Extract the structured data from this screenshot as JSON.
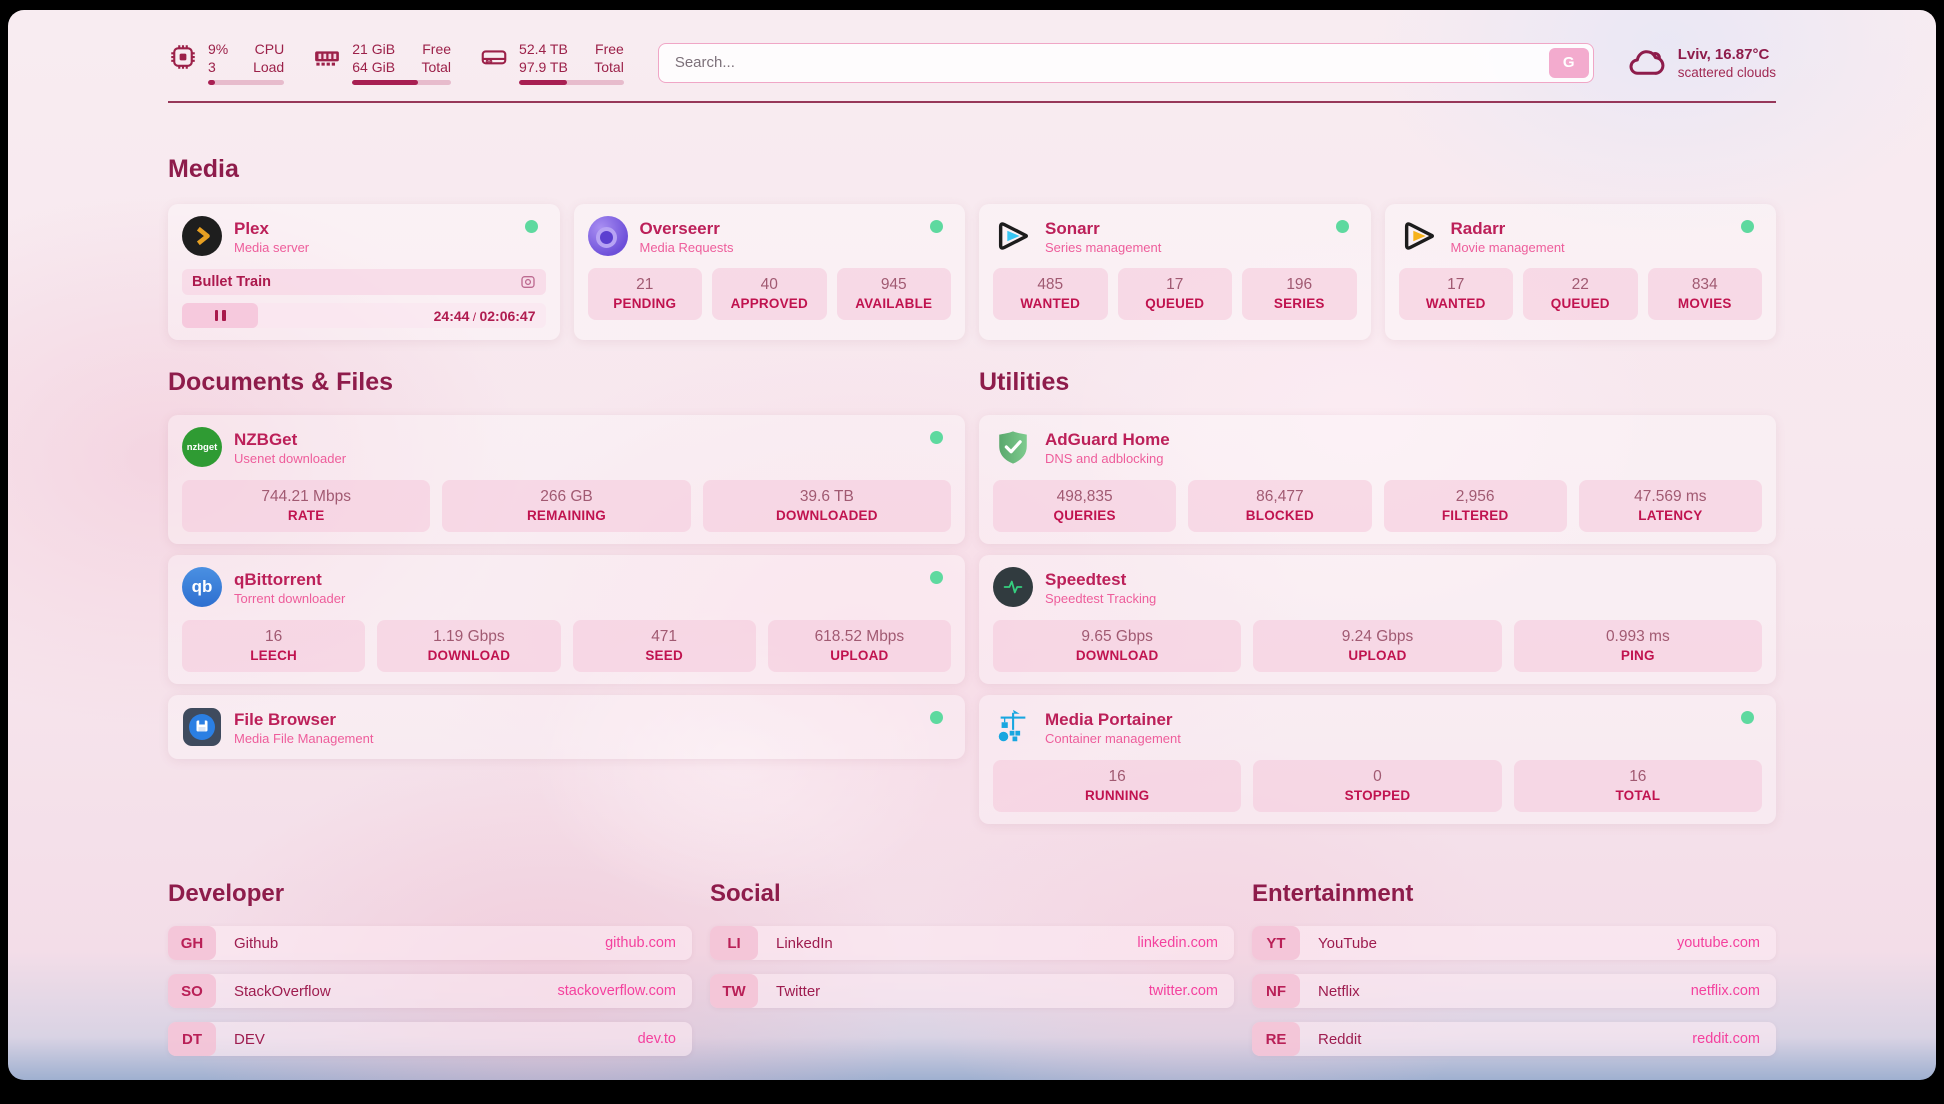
{
  "header": {
    "widgets": [
      {
        "kind": "cpu",
        "val1": "9%",
        "val2": "3",
        "lab1": "CPU",
        "lab2": "Load",
        "progress": 9
      },
      {
        "kind": "memory",
        "val1": "21 GiB",
        "val2": "64 GiB",
        "lab1": "Free",
        "lab2": "Total",
        "progress": 67
      },
      {
        "kind": "disk",
        "val1": "52.4 TB",
        "val2": "97.9 TB",
        "lab1": "Free",
        "lab2": "Total",
        "progress": 46
      }
    ],
    "search": {
      "placeholder": "Search...",
      "button_label": "G"
    },
    "weather": {
      "location_temp": "Lviv, 16.87°C",
      "condition": "scattered clouds"
    }
  },
  "sections": {
    "media": {
      "title": "Media",
      "apps": [
        {
          "name": "Plex",
          "subtitle": "Media server",
          "status": "online",
          "now_playing": {
            "title": "Bullet Train",
            "elapsed": "24:44",
            "separator": " / ",
            "duration": "02:06:47"
          }
        },
        {
          "name": "Overseerr",
          "subtitle": "Media Requests",
          "status": "online",
          "stats": [
            {
              "value": "21",
              "label": "PENDING"
            },
            {
              "value": "40",
              "label": "APPROVED"
            },
            {
              "value": "945",
              "label": "AVAILABLE"
            }
          ]
        },
        {
          "name": "Sonarr",
          "subtitle": "Series management",
          "status": "online",
          "stats": [
            {
              "value": "485",
              "label": "WANTED"
            },
            {
              "value": "17",
              "label": "QUEUED"
            },
            {
              "value": "196",
              "label": "SERIES"
            }
          ]
        },
        {
          "name": "Radarr",
          "subtitle": "Movie management",
          "status": "online",
          "stats": [
            {
              "value": "17",
              "label": "WANTED"
            },
            {
              "value": "22",
              "label": "QUEUED"
            },
            {
              "value": "834",
              "label": "MOVIES"
            }
          ]
        }
      ]
    },
    "documents": {
      "title": "Documents & Files",
      "apps": [
        {
          "name": "NZBGet",
          "subtitle": "Usenet downloader",
          "status": "online",
          "icon_text": "nzbget",
          "stats": [
            {
              "value": "744.21 Mbps",
              "label": "RATE"
            },
            {
              "value": "266 GB",
              "label": "REMAINING"
            },
            {
              "value": "39.6 TB",
              "label": "DOWNLOADED"
            }
          ]
        },
        {
          "name": "qBittorrent",
          "subtitle": "Torrent downloader",
          "status": "online",
          "icon_text": "qb",
          "stats": [
            {
              "value": "16",
              "label": "LEECH"
            },
            {
              "value": "1.19 Gbps",
              "label": "DOWNLOAD"
            },
            {
              "value": "471",
              "label": "SEED"
            },
            {
              "value": "618.52 Mbps",
              "label": "UPLOAD"
            }
          ]
        },
        {
          "name": "File Browser",
          "subtitle": "Media File Management",
          "status": "online"
        }
      ]
    },
    "utilities": {
      "title": "Utilities",
      "apps": [
        {
          "name": "AdGuard Home",
          "subtitle": "DNS and adblocking",
          "stats": [
            {
              "value": "498,835",
              "label": "QUERIES"
            },
            {
              "value": "86,477",
              "label": "BLOCKED"
            },
            {
              "value": "2,956",
              "label": "FILTERED"
            },
            {
              "value": "47.569 ms",
              "label": "LATENCY"
            }
          ]
        },
        {
          "name": "Speedtest",
          "subtitle": "Speedtest Tracking",
          "stats": [
            {
              "value": "9.65 Gbps",
              "label": "DOWNLOAD"
            },
            {
              "value": "9.24 Gbps",
              "label": "UPLOAD"
            },
            {
              "value": "0.993 ms",
              "label": "PING"
            }
          ]
        },
        {
          "name": "Media Portainer",
          "subtitle": "Container management",
          "status": "online",
          "stats": [
            {
              "value": "16",
              "label": "RUNNING"
            },
            {
              "value": "0",
              "label": "STOPPED"
            },
            {
              "value": "16",
              "label": "TOTAL"
            }
          ]
        }
      ]
    },
    "bookmarks": [
      {
        "title": "Developer",
        "links": [
          {
            "abbr": "GH",
            "name": "Github",
            "url": "github.com"
          },
          {
            "abbr": "SO",
            "name": "StackOverflow",
            "url": "stackoverflow.com"
          },
          {
            "abbr": "DT",
            "name": "DEV",
            "url": "dev.to"
          }
        ]
      },
      {
        "title": "Social",
        "links": [
          {
            "abbr": "LI",
            "name": "LinkedIn",
            "url": "linkedin.com"
          },
          {
            "abbr": "TW",
            "name": "Twitter",
            "url": "twitter.com"
          }
        ]
      },
      {
        "title": "Entertainment",
        "links": [
          {
            "abbr": "YT",
            "name": "YouTube",
            "url": "youtube.com"
          },
          {
            "abbr": "NF",
            "name": "Netflix",
            "url": "netflix.com"
          },
          {
            "abbr": "RE",
            "name": "Reddit",
            "url": "reddit.com"
          }
        ]
      }
    ]
  },
  "colors": {
    "accent": "#c0134f",
    "heading": "#8e1c4b",
    "status_online": "#5ed99f",
    "url_pink": "#f4419e"
  }
}
